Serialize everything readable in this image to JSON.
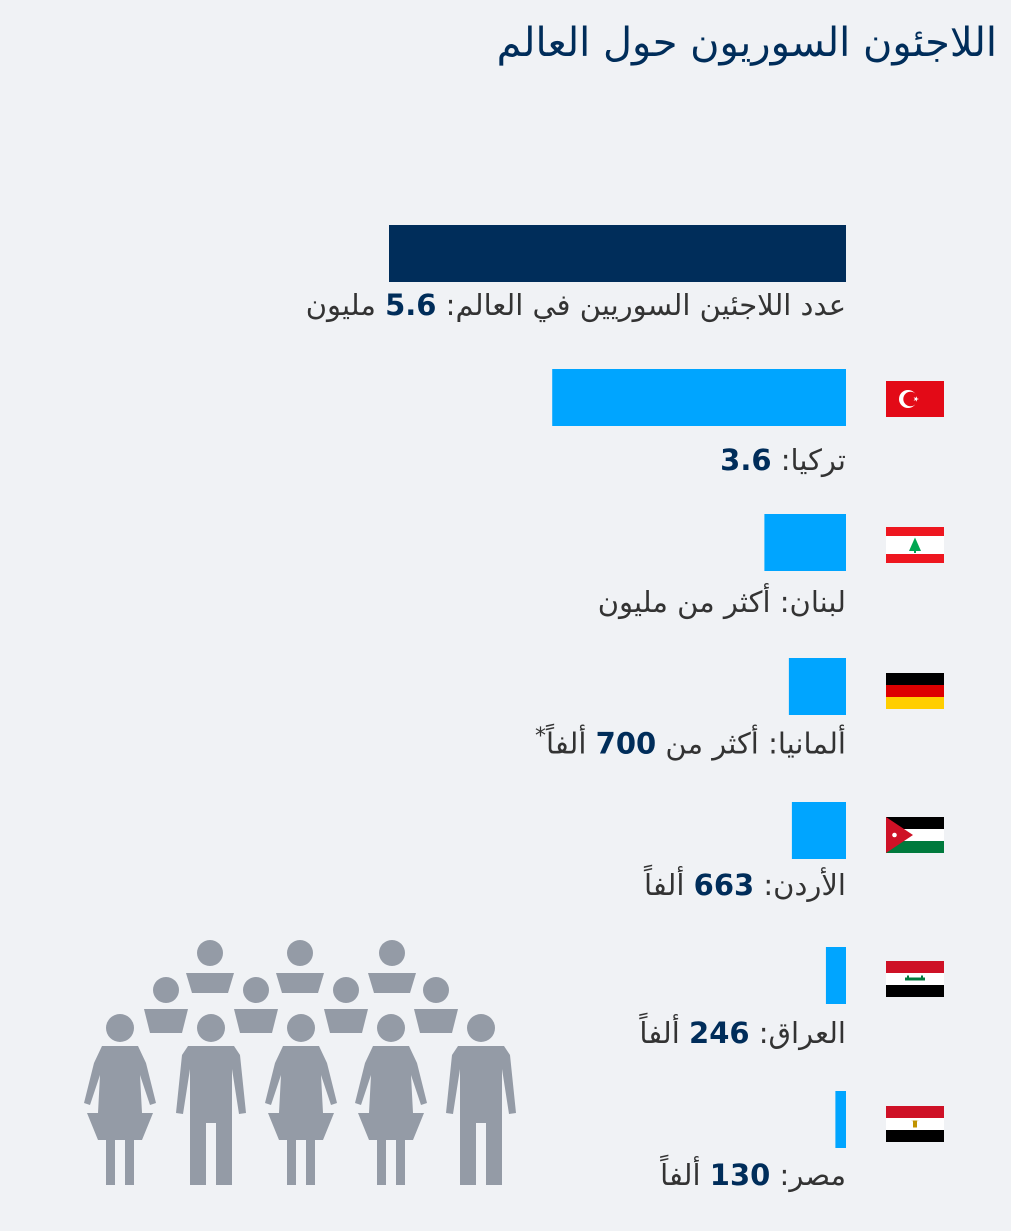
{
  "title": "اللاجئون السوريون حول العالم",
  "colors": {
    "total_bar": "#002d5a",
    "country_bar": "#00a5ff",
    "background": "#f0f2f5",
    "people_icon": "#949ba6"
  },
  "icons": {
    "people": "refugee-crowd-icon"
  },
  "chart_data": {
    "type": "bar",
    "orientation": "horizontal",
    "title": "اللاجئون السوريون حول العالم",
    "unit": "مليون",
    "xlim": [
      0,
      5.6
    ],
    "grid": false,
    "categories": [
      "total",
      "turkey",
      "lebanon",
      "germany",
      "jordan",
      "iraq",
      "egypt"
    ],
    "rows": [
      {
        "key": "total",
        "flag": "",
        "value": 5.6,
        "label_prefix": "عدد اللاجئين السوريين في العالم: ",
        "label_number": "5.6",
        "label_suffix": " مليون",
        "note": ""
      },
      {
        "key": "turkey",
        "flag": "turkey-flag-icon",
        "value": 3.6,
        "label_prefix": "تركيا: ",
        "label_number": "3.6",
        "label_suffix": "",
        "note": ""
      },
      {
        "key": "lebanon",
        "flag": "lebanon-flag-icon",
        "value": 1.0,
        "label_prefix": "لبنان: أكثر من مليون",
        "label_number": "",
        "label_suffix": "",
        "note": ""
      },
      {
        "key": "germany",
        "flag": "germany-flag-icon",
        "value": 0.7,
        "label_prefix": "ألمانيا: أكثر من ",
        "label_number": "700",
        "label_suffix": " ألفاً",
        "note": "*"
      },
      {
        "key": "jordan",
        "flag": "jordan-flag-icon",
        "value": 0.663,
        "label_prefix": "الأردن: ",
        "label_number": "663",
        "label_suffix": " ألفاً",
        "note": ""
      },
      {
        "key": "iraq",
        "flag": "iraq-flag-icon",
        "value": 0.246,
        "label_prefix": "العراق: ",
        "label_number": "246",
        "label_suffix": " ألفاً",
        "note": ""
      },
      {
        "key": "egypt",
        "flag": "egypt-flag-icon",
        "value": 0.13,
        "label_prefix": "مصر: ",
        "label_number": "130",
        "label_suffix": " ألفاً",
        "note": ""
      }
    ]
  }
}
